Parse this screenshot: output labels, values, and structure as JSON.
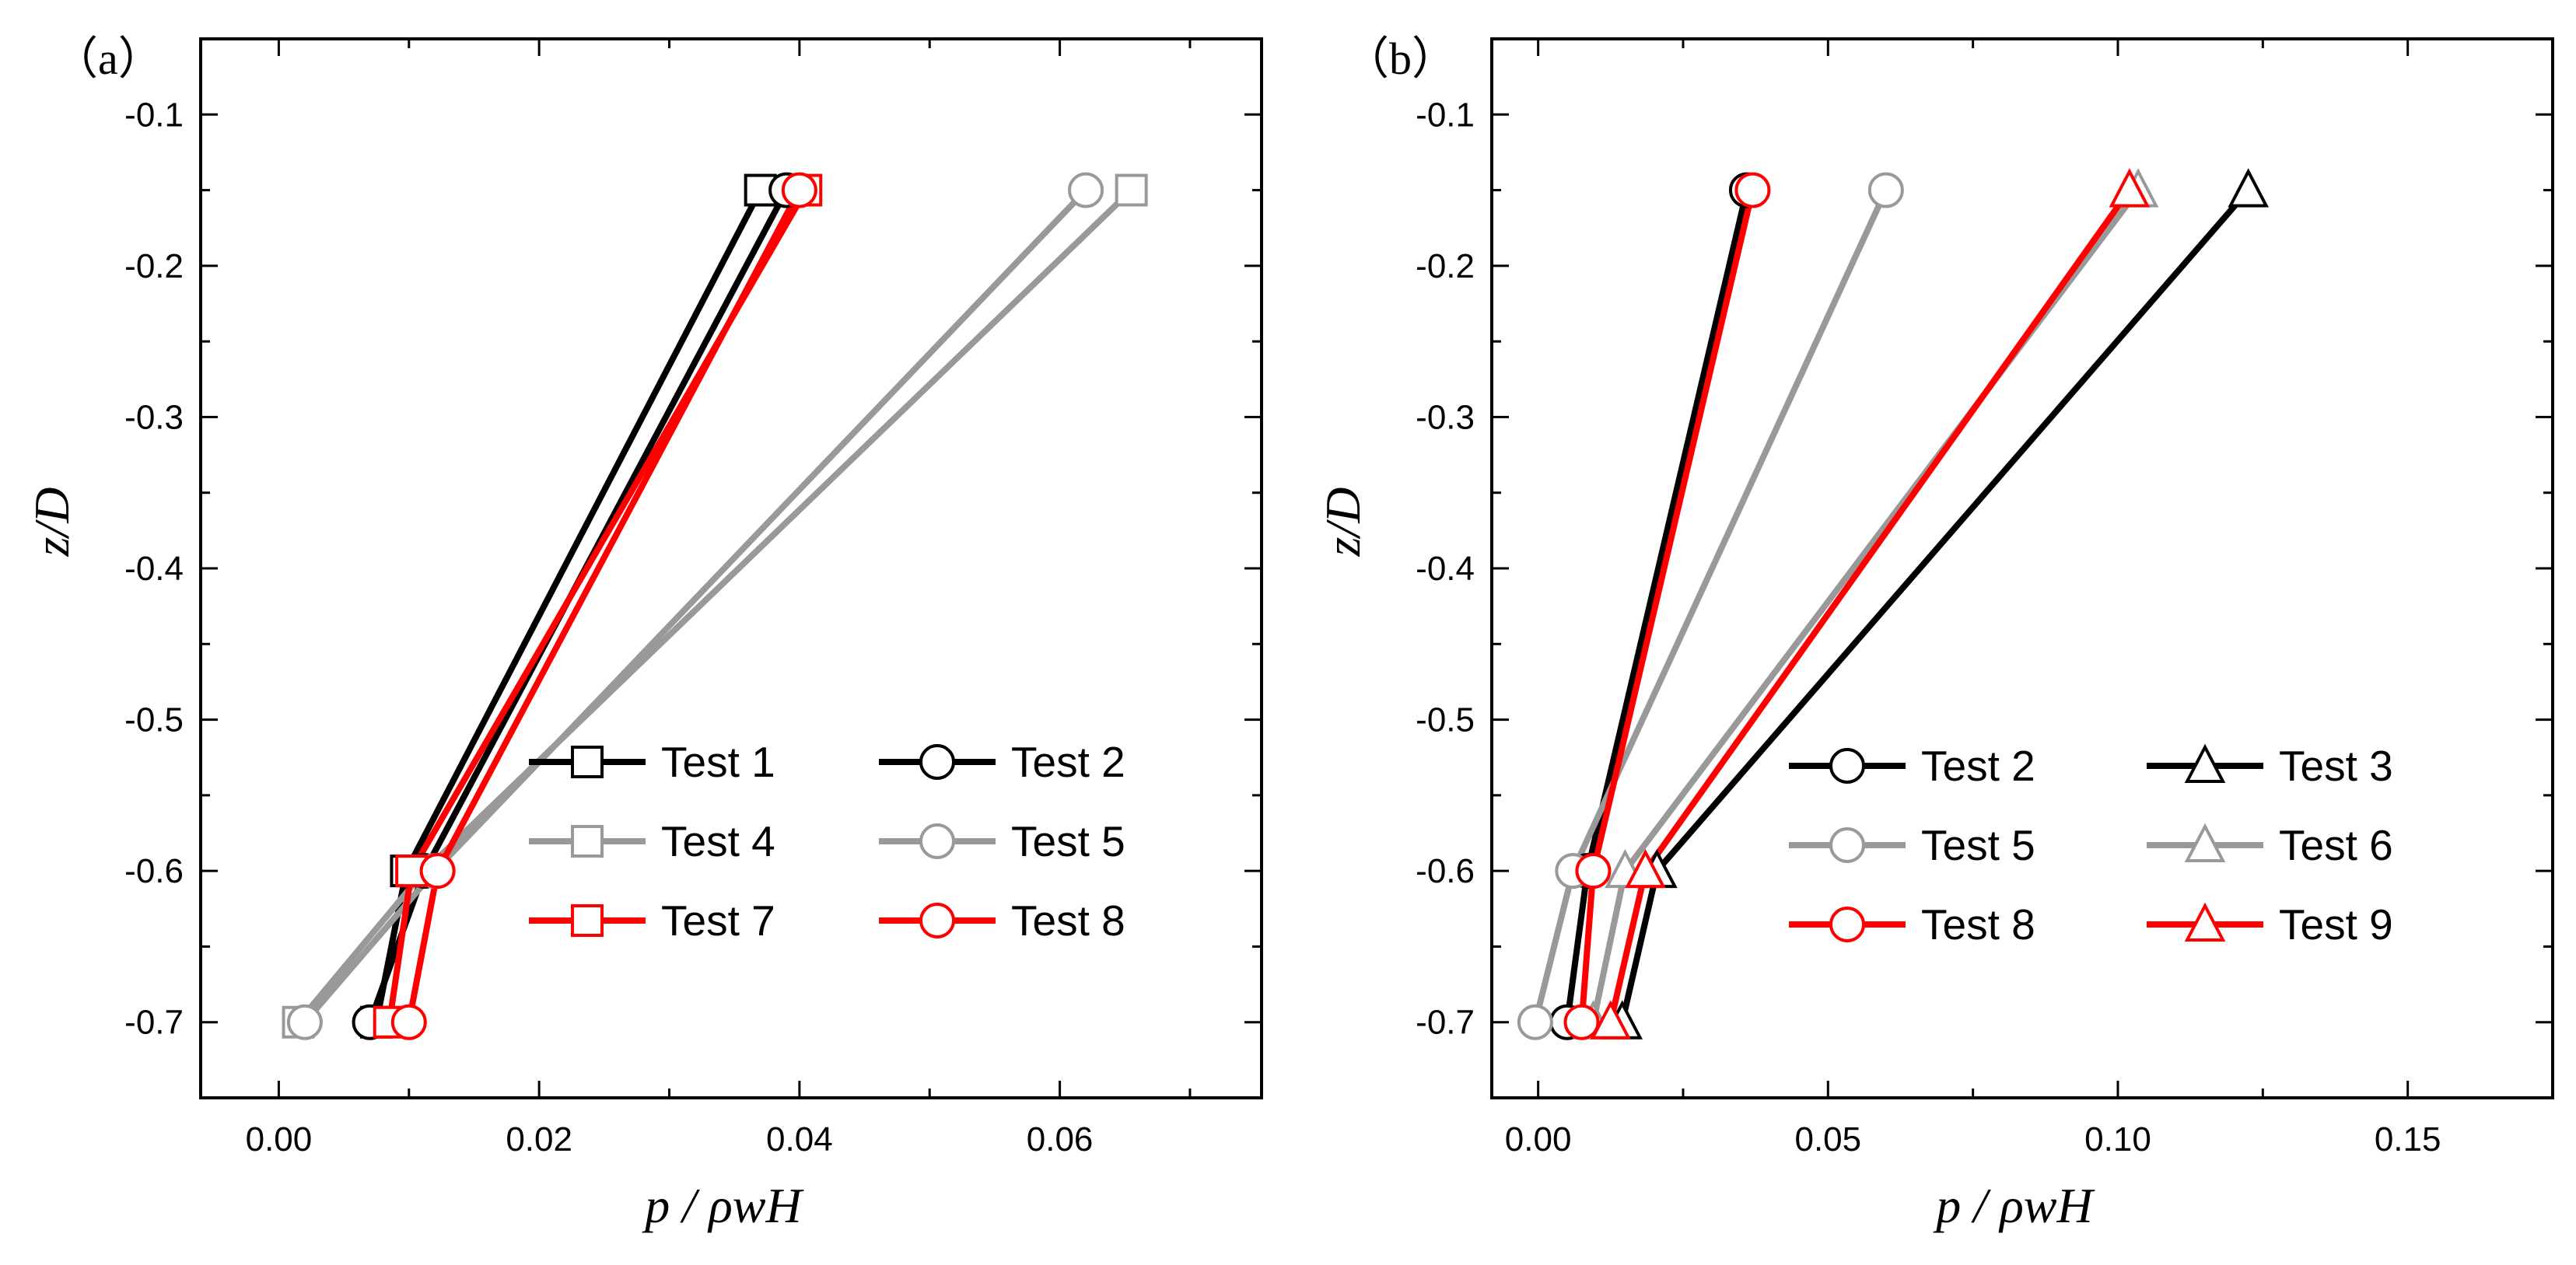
{
  "chart_data": [
    {
      "type": "line",
      "panel_label": "（a）",
      "xlabel": "p / ρwH",
      "ylabel": "z/D",
      "xlim": [
        -0.006,
        0.0755
      ],
      "ylim": [
        -0.75,
        -0.05
      ],
      "xticks": [
        0.0,
        0.02,
        0.04,
        0.06
      ],
      "xtick_labels": [
        "0.00",
        "0.02",
        "0.04",
        "0.06"
      ],
      "yticks": [
        -0.1,
        -0.2,
        -0.3,
        -0.4,
        -0.5,
        -0.6,
        -0.7
      ],
      "ytick_labels": [
        "-0.1",
        "-0.2",
        "-0.3",
        "-0.4",
        "-0.5",
        "-0.6",
        "-0.7"
      ],
      "grid": false,
      "legend_position": "lower-right",
      "legend_columns": 2,
      "series": [
        {
          "name": "Test 1",
          "marker": "square",
          "color": "#000000",
          "points": [
            [
              0.037,
              -0.15
            ],
            [
              0.0098,
              -0.6
            ],
            [
              0.0075,
              -0.7
            ]
          ]
        },
        {
          "name": "Test 2",
          "marker": "circle",
          "color": "#000000",
          "points": [
            [
              0.039,
              -0.15
            ],
            [
              0.0112,
              -0.6
            ],
            [
              0.007,
              -0.7
            ]
          ]
        },
        {
          "name": "Test 4",
          "marker": "square",
          "color": "#999999",
          "points": [
            [
              0.0655,
              -0.15
            ],
            [
              0.0112,
              -0.6
            ],
            [
              0.0015,
              -0.7
            ]
          ]
        },
        {
          "name": "Test 5",
          "marker": "circle",
          "color": "#999999",
          "points": [
            [
              0.062,
              -0.15
            ],
            [
              0.012,
              -0.6
            ],
            [
              0.002,
              -0.7
            ]
          ]
        },
        {
          "name": "Test 7",
          "marker": "square",
          "color": "#ff0000",
          "points": [
            [
              0.0405,
              -0.15
            ],
            [
              0.0102,
              -0.6
            ],
            [
              0.0085,
              -0.7
            ]
          ]
        },
        {
          "name": "Test 8",
          "marker": "circle",
          "color": "#ff0000",
          "points": [
            [
              0.04,
              -0.15
            ],
            [
              0.0122,
              -0.6
            ],
            [
              0.01,
              -0.7
            ]
          ]
        }
      ]
    },
    {
      "type": "line",
      "panel_label": "（b）",
      "xlabel": "p / ρwH",
      "ylabel": "z/D",
      "xlim": [
        -0.008,
        0.175
      ],
      "ylim": [
        -0.75,
        -0.05
      ],
      "xticks": [
        0.0,
        0.05,
        0.1,
        0.15
      ],
      "xtick_labels": [
        "0.00",
        "0.05",
        "0.10",
        "0.15"
      ],
      "yticks": [
        -0.1,
        -0.2,
        -0.3,
        -0.4,
        -0.5,
        -0.6,
        -0.7
      ],
      "ytick_labels": [
        "-0.1",
        "-0.2",
        "-0.3",
        "-0.4",
        "-0.5",
        "-0.6",
        "-0.7"
      ],
      "grid": false,
      "legend_position": "lower-right",
      "legend_columns": 2,
      "series": [
        {
          "name": "Test 2",
          "marker": "circle",
          "color": "#000000",
          "points": [
            [
              0.036,
              -0.15
            ],
            [
              0.0085,
              -0.6
            ],
            [
              0.005,
              -0.7
            ]
          ]
        },
        {
          "name": "Test 3",
          "marker": "triangle",
          "color": "#000000",
          "points": [
            [
              0.1225,
              -0.15
            ],
            [
              0.0205,
              -0.6
            ],
            [
              0.0145,
              -0.7
            ]
          ]
        },
        {
          "name": "Test 5",
          "marker": "circle",
          "color": "#999999",
          "points": [
            [
              0.06,
              -0.15
            ],
            [
              0.006,
              -0.6
            ],
            [
              -0.0005,
              -0.7
            ]
          ]
        },
        {
          "name": "Test 6",
          "marker": "triangle",
          "color": "#999999",
          "points": [
            [
              0.1035,
              -0.15
            ],
            [
              0.015,
              -0.6
            ],
            [
              0.0095,
              -0.7
            ]
          ]
        },
        {
          "name": "Test 8",
          "marker": "circle",
          "color": "#ff0000",
          "points": [
            [
              0.037,
              -0.15
            ],
            [
              0.0095,
              -0.6
            ],
            [
              0.0075,
              -0.7
            ]
          ]
        },
        {
          "name": "Test 9",
          "marker": "triangle",
          "color": "#ff0000",
          "points": [
            [
              0.102,
              -0.15
            ],
            [
              0.0185,
              -0.6
            ],
            [
              0.0125,
              -0.7
            ]
          ]
        }
      ]
    }
  ]
}
